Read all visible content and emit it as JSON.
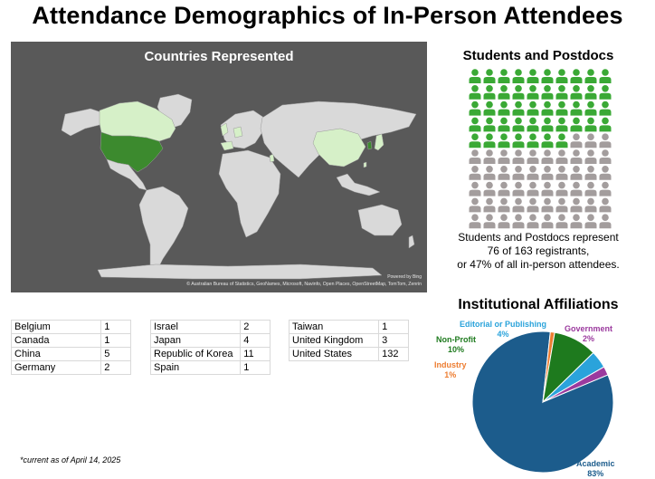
{
  "title": "Attendance Demographics of In-Person Attendees",
  "map": {
    "title": "Countries Represented",
    "credit_line1": "Powered by Bing",
    "credit_line2": "© Australian Bureau of Statistics, GeoNames, Microsoft, Navinfo, Open Places, OpenStreetMap, TomTom, Zenrin",
    "colors": {
      "background": "#595959",
      "land": "#d9d9d9",
      "low": "#d6f0c8",
      "high": "#3c8a2e"
    }
  },
  "countries": [
    [
      {
        "name": "Belgium",
        "count": "1"
      },
      {
        "name": "Canada",
        "count": "1"
      },
      {
        "name": "China",
        "count": "5"
      },
      {
        "name": "Germany",
        "count": "2"
      }
    ],
    [
      {
        "name": "Israel",
        "count": "2"
      },
      {
        "name": "Japan",
        "count": "4"
      },
      {
        "name": "Republic of Korea",
        "count": "11"
      },
      {
        "name": "Spain",
        "count": "1"
      }
    ],
    [
      {
        "name": "Taiwan",
        "count": "1"
      },
      {
        "name": "United Kingdom",
        "count": "3"
      },
      {
        "name": "United States",
        "count": "132"
      }
    ]
  ],
  "students": {
    "title": "Students and Postdocs",
    "line1": "Students and Postdocs represent",
    "line2": "76 of 163 registrants,",
    "line3": "or 47% of all in-person attendees.",
    "icon": "person-icon",
    "total_icons": 100,
    "highlighted_icons": 47,
    "colors": {
      "highlight": "#3aa935",
      "rest": "#a39d9d"
    }
  },
  "affiliations": {
    "title": "Institutional Affiliations",
    "labels": {
      "editorial": [
        "Editorial or Publishing",
        "4%"
      ],
      "government": [
        "Government",
        "2%"
      ],
      "nonprofit": [
        "Non-Profit",
        "10%"
      ],
      "industry": [
        "Industry",
        "1%"
      ],
      "academic": [
        "Academic",
        "83%"
      ]
    }
  },
  "chart_data": {
    "type": "pie",
    "title": "Institutional Affiliations",
    "labels": [
      "Academic",
      "Industry",
      "Non-Profit",
      "Editorial or Publishing",
      "Government"
    ],
    "values": [
      83,
      1,
      10,
      4,
      2
    ],
    "colors": [
      "#1c5c8c",
      "#ed7d31",
      "#1e7a1e",
      "#2aa3db",
      "#9b3a9e"
    ]
  },
  "footnote": "*current as of April 14, 2025"
}
